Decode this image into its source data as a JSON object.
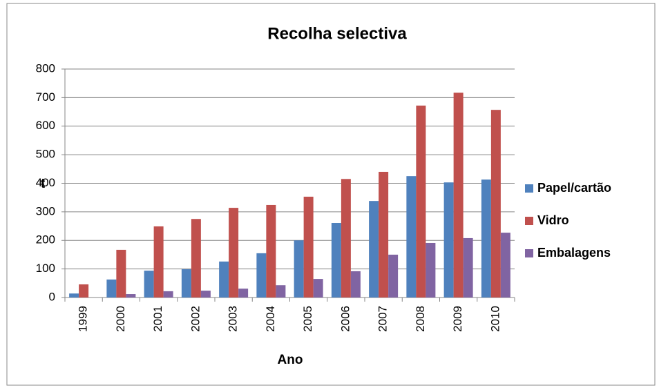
{
  "chart_data": {
    "type": "bar",
    "title": "Recolha selectiva",
    "xlabel": "Ano",
    "ylabel": "t",
    "categories": [
      "1999",
      "2000",
      "2001",
      "2002",
      "2003",
      "2004",
      "2005",
      "2006",
      "2007",
      "2008",
      "2009",
      "2010"
    ],
    "series": [
      {
        "name": "Papel/cartão",
        "color": "#4f81bd",
        "values": [
          14,
          63,
          94,
          99,
          126,
          155,
          200,
          261,
          338,
          425,
          403,
          413
        ]
      },
      {
        "name": "Vidro",
        "color": "#c0504d",
        "values": [
          46,
          167,
          249,
          275,
          314,
          324,
          353,
          415,
          440,
          672,
          717,
          657
        ]
      },
      {
        "name": "Embalagens",
        "color": "#8064a2",
        "values": [
          0,
          12,
          22,
          24,
          31,
          43,
          65,
          92,
          150,
          191,
          208,
          227
        ]
      }
    ],
    "ylim": [
      0,
      800
    ],
    "yticks": [
      0,
      100,
      200,
      300,
      400,
      500,
      600,
      700,
      800
    ],
    "grid": true,
    "legend": "right"
  }
}
